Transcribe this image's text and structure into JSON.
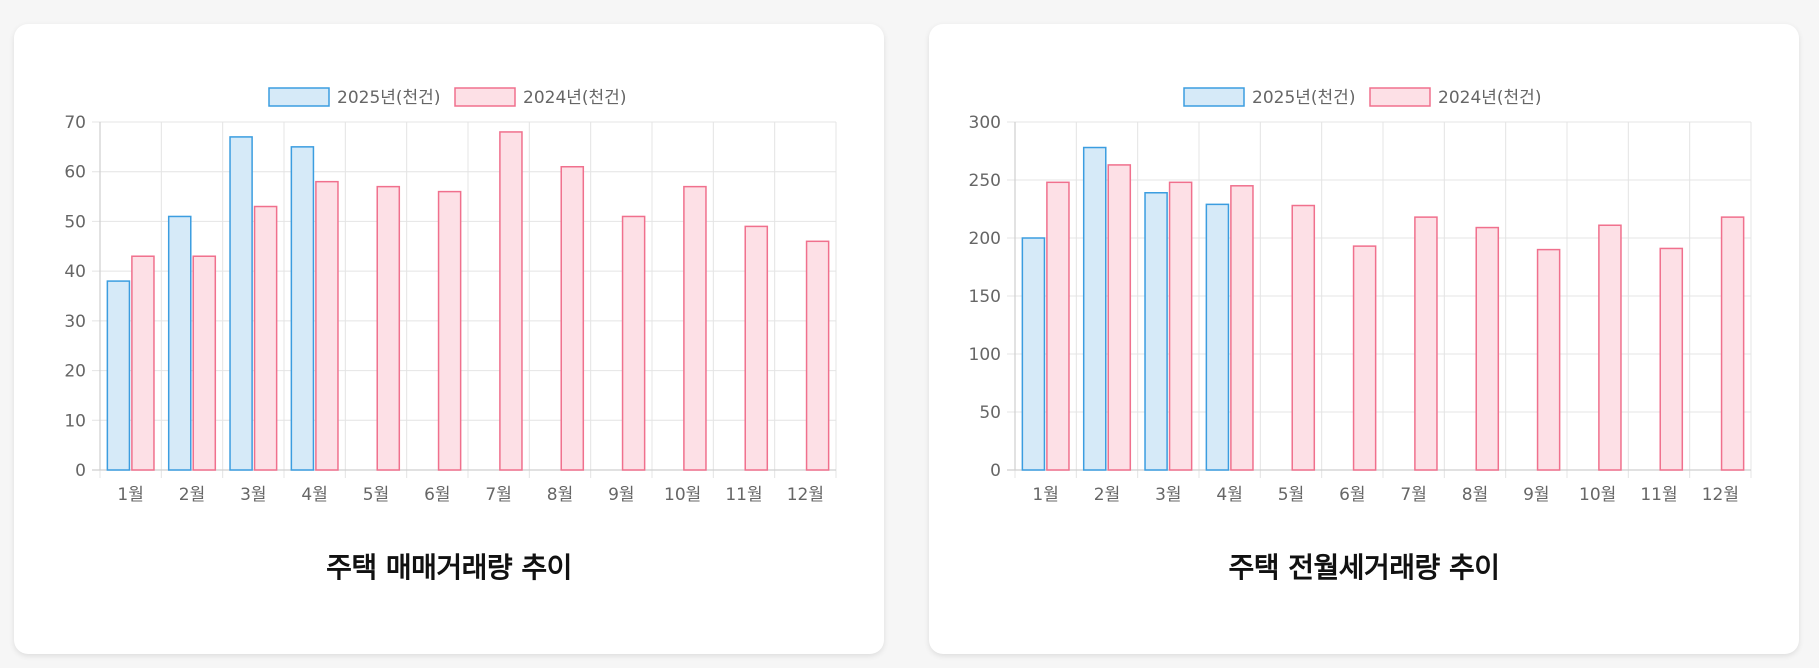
{
  "chart_data": [
    {
      "type": "bar",
      "title": "주택 매매거래량 추이",
      "categories": [
        "1월",
        "2월",
        "3월",
        "4월",
        "5월",
        "6월",
        "7월",
        "8월",
        "9월",
        "10월",
        "11월",
        "12월"
      ],
      "series": [
        {
          "name": "2025년(천건)",
          "values": [
            38,
            51,
            67,
            65,
            null,
            null,
            null,
            null,
            null,
            null,
            null,
            null
          ],
          "fill": "#d6eaf8",
          "stroke": "#3b9de0"
        },
        {
          "name": "2024년(천건)",
          "values": [
            43,
            43,
            53,
            58,
            57,
            56,
            68,
            61,
            51,
            57,
            49,
            46
          ],
          "fill": "#fde0e6",
          "stroke": "#f0708d"
        }
      ],
      "ylim": [
        0,
        70
      ],
      "yticks": [
        0,
        10,
        20,
        30,
        40,
        50,
        60,
        70
      ],
      "grid": true,
      "legend_position": "top"
    },
    {
      "type": "bar",
      "title": "주택 전월세거래량 추이",
      "categories": [
        "1월",
        "2월",
        "3월",
        "4월",
        "5월",
        "6월",
        "7월",
        "8월",
        "9월",
        "10월",
        "11월",
        "12월"
      ],
      "series": [
        {
          "name": "2025년(천건)",
          "values": [
            200,
            278,
            239,
            229,
            null,
            null,
            null,
            null,
            null,
            null,
            null,
            null
          ],
          "fill": "#d6eaf8",
          "stroke": "#3b9de0"
        },
        {
          "name": "2024년(천건)",
          "values": [
            248,
            263,
            248,
            245,
            228,
            193,
            218,
            209,
            190,
            211,
            191,
            218
          ],
          "fill": "#fde0e6",
          "stroke": "#f0708d"
        }
      ],
      "ylim": [
        0,
        300
      ],
      "yticks": [
        0,
        50,
        100,
        150,
        200,
        250,
        300
      ],
      "grid": true,
      "legend_position": "top"
    }
  ],
  "colors": {
    "grid": "#e4e4e4",
    "axis_text": "#666666",
    "card_background": "#ffffff",
    "page_background": "#f6f6f6"
  }
}
